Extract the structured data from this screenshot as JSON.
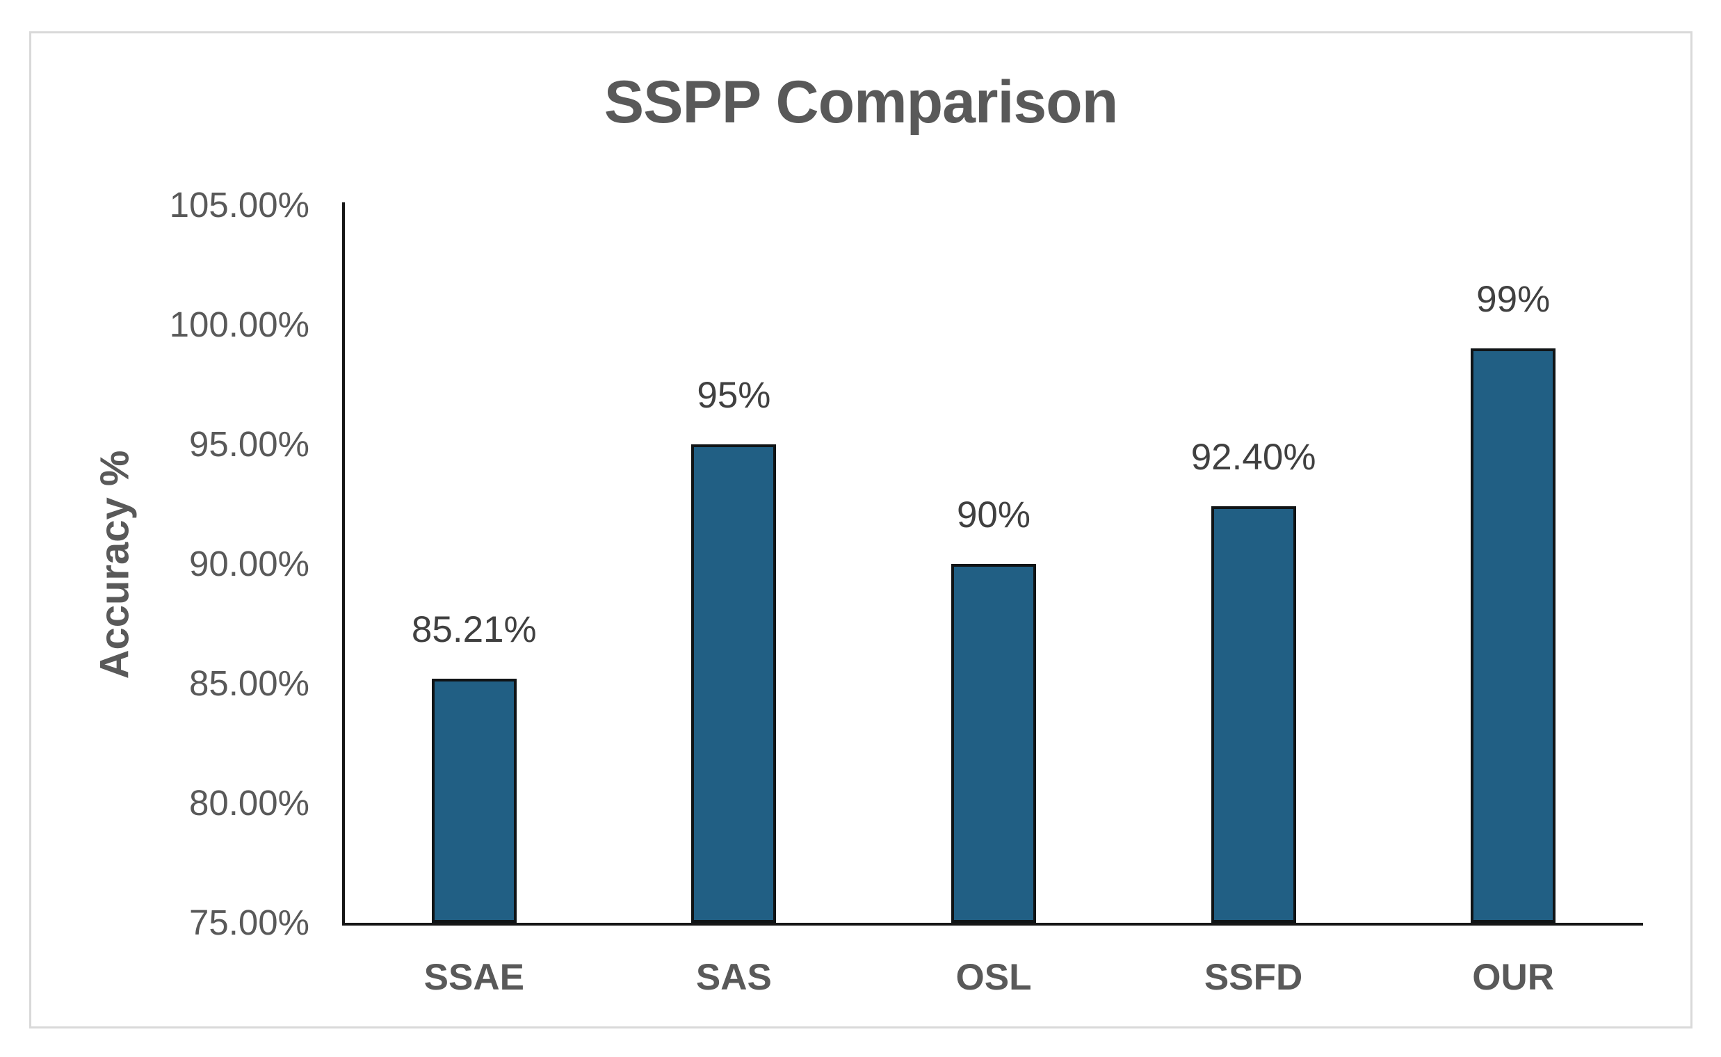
{
  "chart_data": {
    "type": "bar",
    "title": "SSPP Comparison",
    "xlabel": "",
    "ylabel": "Accuracy %",
    "categories": [
      "SSAE",
      "SAS",
      "OSL",
      "SSFD",
      "OUR"
    ],
    "values": [
      85.21,
      95,
      90,
      92.4,
      99
    ],
    "data_labels": [
      "85.21%",
      "95%",
      "90%",
      "92.40%",
      "99%"
    ],
    "ylim": [
      75,
      105
    ],
    "yticks": [
      {
        "value": 75,
        "label": "75.00%"
      },
      {
        "value": 80,
        "label": "80.00%"
      },
      {
        "value": 85,
        "label": "85.00%"
      },
      {
        "value": 90,
        "label": "90.00%"
      },
      {
        "value": 95,
        "label": "95.00%"
      },
      {
        "value": 100,
        "label": "100.00%"
      },
      {
        "value": 105,
        "label": "105.00%"
      }
    ],
    "grid": false,
    "legend": "none",
    "colors": {
      "bar_fill": "#215F84",
      "bar_border": "#101416",
      "axis_line": "#161616",
      "title_text": "#595959",
      "tick_text": "#595959",
      "data_label_text": "#404040",
      "frame_border": "#d9d9d9",
      "background": "#ffffff"
    }
  }
}
